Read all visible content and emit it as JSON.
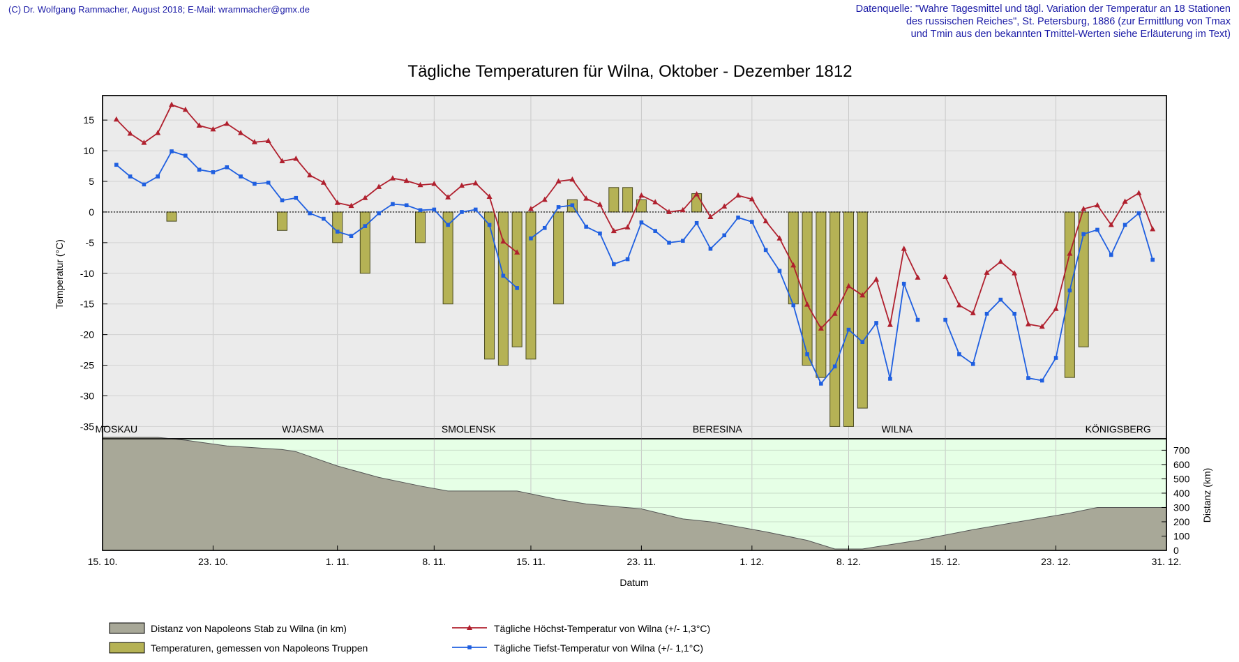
{
  "header": {
    "credit": "(C) Dr. Wolfgang Rammacher, August 2018;  E-Mail: wrammacher@gmx.de",
    "source_line1": "Datenquelle: \"Wahre Tagesmittel und tägl. Variation der Temperatur an 18 Stationen",
    "source_line2": "des russischen Reiches\", St. Petersburg, 1886 (zur Ermittlung von Tmax",
    "source_line3": "und Tmin aus den bekannten Tmittel-Werten siehe Erläuterung im Text)"
  },
  "colors": {
    "tmax": "#b0202e",
    "tmin": "#1f5fe0",
    "bars": "#b5b255",
    "bar_stroke": "#4a4a20",
    "distance_fill": "#a8a898",
    "upper_bg": "#ebebeb",
    "lower_bg": "#e6ffe6"
  },
  "chart_data": [
    {
      "type": "line",
      "title": "Tägliche Temperaturen für Wilna, Oktober - Dezember 1812",
      "xlabel": "Datum",
      "ylabel": "Temperatur (°C)",
      "x_unit": "day index, 0 = 15. 10. 1812",
      "xlim": [
        0,
        77
      ],
      "ylim": [
        -37,
        19
      ],
      "yticks": [
        15,
        10,
        5,
        0,
        -5,
        -10,
        -15,
        -20,
        -25,
        -30,
        -35
      ],
      "xticks": [
        {
          "day": 0,
          "label": "15. 10."
        },
        {
          "day": 8,
          "label": "23. 10."
        },
        {
          "day": 17,
          "label": "1. 11."
        },
        {
          "day": 24,
          "label": "8. 11."
        },
        {
          "day": 31,
          "label": "15. 11."
        },
        {
          "day": 39,
          "label": "23. 11."
        },
        {
          "day": 47,
          "label": "1. 12."
        },
        {
          "day": 54,
          "label": "8. 12."
        },
        {
          "day": 61,
          "label": "15. 12."
        },
        {
          "day": 69,
          "label": "23. 12."
        },
        {
          "day": 77,
          "label": "31. 12."
        }
      ],
      "places": [
        {
          "day": 1,
          "label": "MOSKAU"
        },
        {
          "day": 14.5,
          "label": "WJASMA"
        },
        {
          "day": 26.5,
          "label": "SMOLENSK"
        },
        {
          "day": 44.5,
          "label": "BERESINA"
        },
        {
          "day": 57.5,
          "label": "WILNA"
        },
        {
          "day": 73.5,
          "label": "KÖNIGSBERG"
        }
      ],
      "series": [
        {
          "name": "Tägliche Höchst-Temperatur von Wilna (+/- 1,3°C)",
          "marker": "triangle",
          "segments": [
            [
              [
                1,
                15.1
              ],
              [
                2,
                12.8
              ],
              [
                3,
                11.3
              ],
              [
                4,
                12.9
              ],
              [
                5,
                17.5
              ],
              [
                6,
                16.7
              ],
              [
                7,
                14.1
              ],
              [
                8,
                13.5
              ],
              [
                9,
                14.4
              ],
              [
                10,
                12.9
              ],
              [
                11,
                11.4
              ],
              [
                12,
                11.6
              ],
              [
                13,
                8.3
              ],
              [
                14,
                8.7
              ],
              [
                15,
                6.0
              ],
              [
                16,
                4.8
              ],
              [
                17,
                1.5
              ],
              [
                18,
                1.0
              ],
              [
                19,
                2.3
              ],
              [
                20,
                4.1
              ],
              [
                21,
                5.5
              ],
              [
                22,
                5.1
              ],
              [
                23,
                4.4
              ],
              [
                24,
                4.6
              ],
              [
                25,
                2.4
              ],
              [
                26,
                4.3
              ],
              [
                27,
                4.7
              ],
              [
                28,
                2.5
              ],
              [
                29,
                -4.8
              ],
              [
                30,
                -6.6
              ]
            ],
            [
              [
                31,
                0.5
              ],
              [
                32,
                2.0
              ],
              [
                33,
                5.0
              ],
              [
                34,
                5.3
              ],
              [
                35,
                2.2
              ],
              [
                36,
                1.2
              ],
              [
                37,
                -3.1
              ],
              [
                38,
                -2.5
              ],
              [
                39,
                2.7
              ],
              [
                40,
                1.6
              ],
              [
                41,
                0.0
              ],
              [
                42,
                0.3
              ],
              [
                43,
                2.9
              ],
              [
                44,
                -0.8
              ],
              [
                45,
                0.9
              ],
              [
                46,
                2.7
              ],
              [
                47,
                2.1
              ],
              [
                48,
                -1.5
              ],
              [
                49,
                -4.3
              ],
              [
                50,
                -8.7
              ],
              [
                51,
                -15.1
              ],
              [
                52,
                -19.0
              ],
              [
                53,
                -16.6
              ],
              [
                54,
                -12.1
              ],
              [
                55,
                -13.6
              ],
              [
                56,
                -11.0
              ],
              [
                57,
                -18.4
              ],
              [
                58,
                -6.0
              ],
              [
                59,
                -10.7
              ]
            ],
            [
              [
                61,
                -10.6
              ],
              [
                62,
                -15.2
              ],
              [
                63,
                -16.5
              ],
              [
                64,
                -9.9
              ],
              [
                65,
                -8.1
              ],
              [
                66,
                -10.0
              ],
              [
                67,
                -18.3
              ],
              [
                68,
                -18.7
              ],
              [
                69,
                -15.8
              ],
              [
                70,
                -6.8
              ],
              [
                71,
                0.5
              ],
              [
                72,
                1.1
              ],
              [
                73,
                -2.1
              ],
              [
                74,
                1.7
              ],
              [
                75,
                3.1
              ],
              [
                76,
                -2.8
              ]
            ]
          ]
        },
        {
          "name": "Tägliche Tiefst-Temperatur von Wilna (+/- 1,1°C)",
          "marker": "square",
          "segments": [
            [
              [
                1,
                7.7
              ],
              [
                2,
                5.8
              ],
              [
                3,
                4.5
              ],
              [
                4,
                5.8
              ],
              [
                5,
                9.9
              ],
              [
                6,
                9.2
              ],
              [
                7,
                6.9
              ],
              [
                8,
                6.5
              ],
              [
                9,
                7.3
              ],
              [
                10,
                5.8
              ],
              [
                11,
                4.6
              ],
              [
                12,
                4.8
              ],
              [
                13,
                1.9
              ],
              [
                14,
                2.3
              ],
              [
                15,
                -0.2
              ],
              [
                16,
                -1.1
              ],
              [
                17,
                -3.2
              ],
              [
                18,
                -3.9
              ],
              [
                19,
                -2.3
              ],
              [
                20,
                -0.2
              ],
              [
                21,
                1.3
              ],
              [
                22,
                1.1
              ],
              [
                23,
                0.3
              ],
              [
                24,
                0.4
              ],
              [
                25,
                -2.1
              ],
              [
                26,
                0.0
              ],
              [
                27,
                0.4
              ],
              [
                28,
                -2.1
              ],
              [
                29,
                -10.4
              ],
              [
                30,
                -12.4
              ]
            ],
            [
              [
                31,
                -4.3
              ],
              [
                32,
                -2.6
              ],
              [
                33,
                0.8
              ],
              [
                34,
                1.1
              ],
              [
                35,
                -2.4
              ],
              [
                36,
                -3.5
              ],
              [
                37,
                -8.5
              ],
              [
                38,
                -7.7
              ],
              [
                39,
                -1.7
              ],
              [
                40,
                -3.1
              ],
              [
                41,
                -5.0
              ],
              [
                42,
                -4.7
              ],
              [
                43,
                -1.8
              ],
              [
                44,
                -6.0
              ],
              [
                45,
                -3.8
              ],
              [
                46,
                -0.9
              ],
              [
                47,
                -1.6
              ],
              [
                48,
                -6.2
              ],
              [
                49,
                -9.6
              ],
              [
                50,
                -15.2
              ],
              [
                51,
                -23.2
              ],
              [
                52,
                -28.0
              ],
              [
                53,
                -25.2
              ],
              [
                54,
                -19.2
              ],
              [
                55,
                -21.2
              ],
              [
                56,
                -18.1
              ],
              [
                57,
                -27.2
              ],
              [
                58,
                -11.7
              ],
              [
                59,
                -17.6
              ]
            ],
            [
              [
                61,
                -17.6
              ],
              [
                62,
                -23.2
              ],
              [
                63,
                -24.8
              ],
              [
                64,
                -16.6
              ],
              [
                65,
                -14.3
              ],
              [
                66,
                -16.6
              ],
              [
                67,
                -27.1
              ],
              [
                68,
                -27.5
              ],
              [
                69,
                -23.8
              ],
              [
                70,
                -12.8
              ],
              [
                71,
                -3.6
              ],
              [
                72,
                -2.9
              ],
              [
                73,
                -7.0
              ],
              [
                74,
                -2.1
              ],
              [
                75,
                -0.2
              ],
              [
                76,
                -7.8
              ]
            ]
          ]
        },
        {
          "name": "Temperaturen, gemessen von Napoleons Truppen",
          "type": "bar",
          "points": [
            [
              5,
              -1.5
            ],
            [
              13,
              -3.0
            ],
            [
              17,
              -5.0
            ],
            [
              19,
              -10.0
            ],
            [
              23,
              -5.0
            ],
            [
              25,
              -15.0
            ],
            [
              28,
              -24.0
            ],
            [
              29,
              -25.0
            ],
            [
              30,
              -22.0
            ],
            [
              31,
              -24.0
            ],
            [
              33,
              -15.0
            ],
            [
              34,
              2.0
            ],
            [
              37,
              4.0
            ],
            [
              38,
              4.0
            ],
            [
              39,
              2.0
            ],
            [
              43,
              3.0
            ],
            [
              50,
              -15.0
            ],
            [
              51,
              -25.0
            ],
            [
              52,
              -27.0
            ],
            [
              53,
              -35.0
            ],
            [
              54,
              -35.0
            ],
            [
              55,
              -32.0
            ],
            [
              70,
              -27.0
            ],
            [
              71,
              -22.0
            ]
          ]
        }
      ]
    },
    {
      "type": "area",
      "ylabel": "Distanz (km)",
      "ylim": [
        0,
        780
      ],
      "yticks": [
        0,
        100,
        200,
        300,
        400,
        500,
        600,
        700
      ],
      "series": [
        {
          "name": "Distanz von Napoleons Stab zu Wilna (in km)",
          "points": [
            [
              0,
              790
            ],
            [
              4,
              790
            ],
            [
              6,
              770
            ],
            [
              9,
              730
            ],
            [
              13,
              705
            ],
            [
              14,
              690
            ],
            [
              17,
              590
            ],
            [
              20,
              510
            ],
            [
              23,
              450
            ],
            [
              25,
              415
            ],
            [
              30,
              415
            ],
            [
              33,
              355
            ],
            [
              35,
              325
            ],
            [
              39,
              290
            ],
            [
              42,
              220
            ],
            [
              44,
              200
            ],
            [
              48,
              130
            ],
            [
              51,
              70
            ],
            [
              53,
              10
            ],
            [
              55,
              10
            ],
            [
              59,
              70
            ],
            [
              63,
              145
            ],
            [
              66,
              195
            ],
            [
              70,
              260
            ],
            [
              72,
              300
            ],
            [
              77,
              300
            ]
          ]
        }
      ]
    }
  ],
  "legend": {
    "distance": "Distanz von Napoleons Stab zu Wilna (in km)",
    "troops": "Temperaturen, gemessen von Napoleons Truppen",
    "tmax": "Tägliche Höchst-Temperatur von Wilna (+/- 1,3°C)",
    "tmin": "Tägliche Tiefst-Temperatur von Wilna (+/- 1,1°C)"
  }
}
